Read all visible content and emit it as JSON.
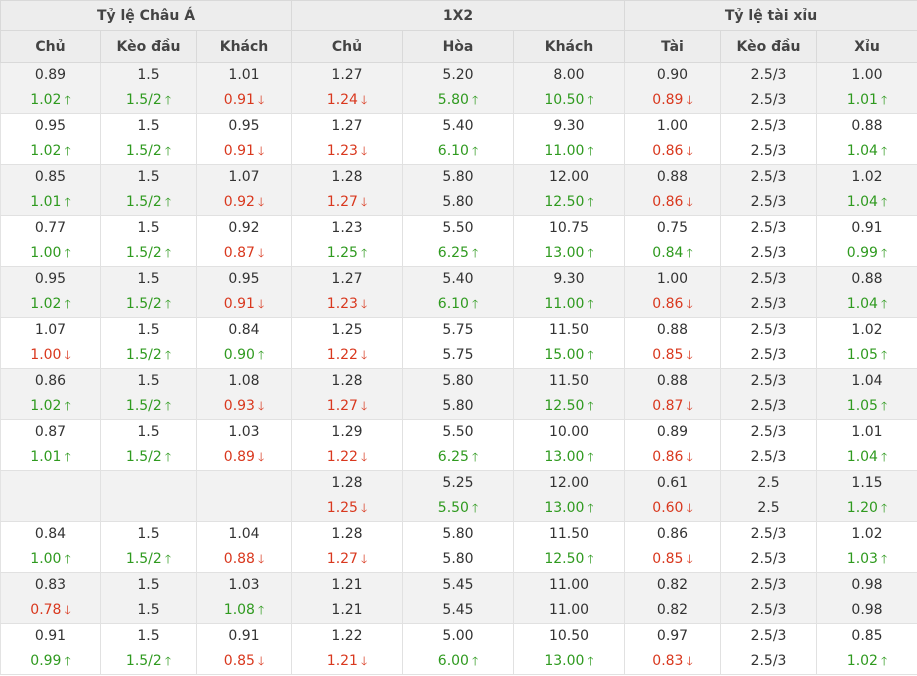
{
  "headers": {
    "groups": [
      "Tỷ lệ Châu Á",
      "1X2",
      "Tỷ lệ tài xỉu"
    ],
    "columns": [
      "Chủ",
      "Kèo đầu",
      "Khách",
      "Chủ",
      "Hòa",
      "Khách",
      "Tài",
      "Kèo đầu",
      "Xỉu"
    ]
  },
  "colors": {
    "up": "#2f9a1f",
    "down": "#d9381e",
    "header_bg": "#ededed",
    "alt_row_bg": "#f2f2f2"
  },
  "arrows": {
    "up": "🡑",
    "down": "🡓"
  },
  "rows": [
    [
      [
        "0.89",
        "1.02",
        "up"
      ],
      [
        "1.5",
        "1.5/2",
        "up"
      ],
      [
        "1.01",
        "0.91",
        "down"
      ],
      [
        "1.27",
        "1.24",
        "down"
      ],
      [
        "5.20",
        "5.80",
        "up"
      ],
      [
        "8.00",
        "10.50",
        "up"
      ],
      [
        "0.90",
        "0.89",
        "down"
      ],
      [
        "2.5/3",
        "2.5/3",
        ""
      ],
      [
        "1.00",
        "1.01",
        "up"
      ]
    ],
    [
      [
        "0.95",
        "1.02",
        "up"
      ],
      [
        "1.5",
        "1.5/2",
        "up"
      ],
      [
        "0.95",
        "0.91",
        "down"
      ],
      [
        "1.27",
        "1.23",
        "down"
      ],
      [
        "5.40",
        "6.10",
        "up"
      ],
      [
        "9.30",
        "11.00",
        "up"
      ],
      [
        "1.00",
        "0.86",
        "down"
      ],
      [
        "2.5/3",
        "2.5/3",
        ""
      ],
      [
        "0.88",
        "1.04",
        "up"
      ]
    ],
    [
      [
        "0.85",
        "1.01",
        "up"
      ],
      [
        "1.5",
        "1.5/2",
        "up"
      ],
      [
        "1.07",
        "0.92",
        "down"
      ],
      [
        "1.28",
        "1.27",
        "down"
      ],
      [
        "5.80",
        "5.80",
        ""
      ],
      [
        "12.00",
        "12.50",
        "up"
      ],
      [
        "0.88",
        "0.86",
        "down"
      ],
      [
        "2.5/3",
        "2.5/3",
        ""
      ],
      [
        "1.02",
        "1.04",
        "up"
      ]
    ],
    [
      [
        "0.77",
        "1.00",
        "up"
      ],
      [
        "1.5",
        "1.5/2",
        "up"
      ],
      [
        "0.92",
        "0.87",
        "down"
      ],
      [
        "1.23",
        "1.25",
        "up"
      ],
      [
        "5.50",
        "6.25",
        "up"
      ],
      [
        "10.75",
        "13.00",
        "up"
      ],
      [
        "0.75",
        "0.84",
        "up"
      ],
      [
        "2.5/3",
        "2.5/3",
        ""
      ],
      [
        "0.91",
        "0.99",
        "up"
      ]
    ],
    [
      [
        "0.95",
        "1.02",
        "up"
      ],
      [
        "1.5",
        "1.5/2",
        "up"
      ],
      [
        "0.95",
        "0.91",
        "down"
      ],
      [
        "1.27",
        "1.23",
        "down"
      ],
      [
        "5.40",
        "6.10",
        "up"
      ],
      [
        "9.30",
        "11.00",
        "up"
      ],
      [
        "1.00",
        "0.86",
        "down"
      ],
      [
        "2.5/3",
        "2.5/3",
        ""
      ],
      [
        "0.88",
        "1.04",
        "up"
      ]
    ],
    [
      [
        "1.07",
        "1.00",
        "down"
      ],
      [
        "1.5",
        "1.5/2",
        "up"
      ],
      [
        "0.84",
        "0.90",
        "up"
      ],
      [
        "1.25",
        "1.22",
        "down"
      ],
      [
        "5.75",
        "5.75",
        ""
      ],
      [
        "11.50",
        "15.00",
        "up"
      ],
      [
        "0.88",
        "0.85",
        "down"
      ],
      [
        "2.5/3",
        "2.5/3",
        ""
      ],
      [
        "1.02",
        "1.05",
        "up"
      ]
    ],
    [
      [
        "0.86",
        "1.02",
        "up"
      ],
      [
        "1.5",
        "1.5/2",
        "up"
      ],
      [
        "1.08",
        "0.93",
        "down"
      ],
      [
        "1.28",
        "1.27",
        "down"
      ],
      [
        "5.80",
        "5.80",
        ""
      ],
      [
        "11.50",
        "12.50",
        "up"
      ],
      [
        "0.88",
        "0.87",
        "down"
      ],
      [
        "2.5/3",
        "2.5/3",
        ""
      ],
      [
        "1.04",
        "1.05",
        "up"
      ]
    ],
    [
      [
        "0.87",
        "1.01",
        "up"
      ],
      [
        "1.5",
        "1.5/2",
        "up"
      ],
      [
        "1.03",
        "0.89",
        "down"
      ],
      [
        "1.29",
        "1.22",
        "down"
      ],
      [
        "5.50",
        "6.25",
        "up"
      ],
      [
        "10.00",
        "13.00",
        "up"
      ],
      [
        "0.89",
        "0.86",
        "down"
      ],
      [
        "2.5/3",
        "2.5/3",
        ""
      ],
      [
        "1.01",
        "1.04",
        "up"
      ]
    ],
    [
      [
        "",
        "",
        ""
      ],
      [
        "",
        "",
        ""
      ],
      [
        "",
        "",
        ""
      ],
      [
        "1.28",
        "1.25",
        "down"
      ],
      [
        "5.25",
        "5.50",
        "up"
      ],
      [
        "12.00",
        "13.00",
        "up"
      ],
      [
        "0.61",
        "0.60",
        "down"
      ],
      [
        "2.5",
        "2.5",
        ""
      ],
      [
        "1.15",
        "1.20",
        "up"
      ]
    ],
    [
      [
        "0.84",
        "1.00",
        "up"
      ],
      [
        "1.5",
        "1.5/2",
        "up"
      ],
      [
        "1.04",
        "0.88",
        "down"
      ],
      [
        "1.28",
        "1.27",
        "down"
      ],
      [
        "5.80",
        "5.80",
        ""
      ],
      [
        "11.50",
        "12.50",
        "up"
      ],
      [
        "0.86",
        "0.85",
        "down"
      ],
      [
        "2.5/3",
        "2.5/3",
        ""
      ],
      [
        "1.02",
        "1.03",
        "up"
      ]
    ],
    [
      [
        "0.83",
        "0.78",
        "down"
      ],
      [
        "1.5",
        "1.5",
        ""
      ],
      [
        "1.03",
        "1.08",
        "up"
      ],
      [
        "1.21",
        "1.21",
        ""
      ],
      [
        "5.45",
        "5.45",
        ""
      ],
      [
        "11.00",
        "11.00",
        ""
      ],
      [
        "0.82",
        "0.82",
        ""
      ],
      [
        "2.5/3",
        "2.5/3",
        ""
      ],
      [
        "0.98",
        "0.98",
        ""
      ]
    ],
    [
      [
        "0.91",
        "0.99",
        "up"
      ],
      [
        "1.5",
        "1.5/2",
        "up"
      ],
      [
        "0.91",
        "0.85",
        "down"
      ],
      [
        "1.22",
        "1.21",
        "down"
      ],
      [
        "5.00",
        "6.00",
        "up"
      ],
      [
        "10.50",
        "13.00",
        "up"
      ],
      [
        "0.97",
        "0.83",
        "down"
      ],
      [
        "2.5/3",
        "2.5/3",
        ""
      ],
      [
        "0.85",
        "1.02",
        "up"
      ]
    ]
  ]
}
